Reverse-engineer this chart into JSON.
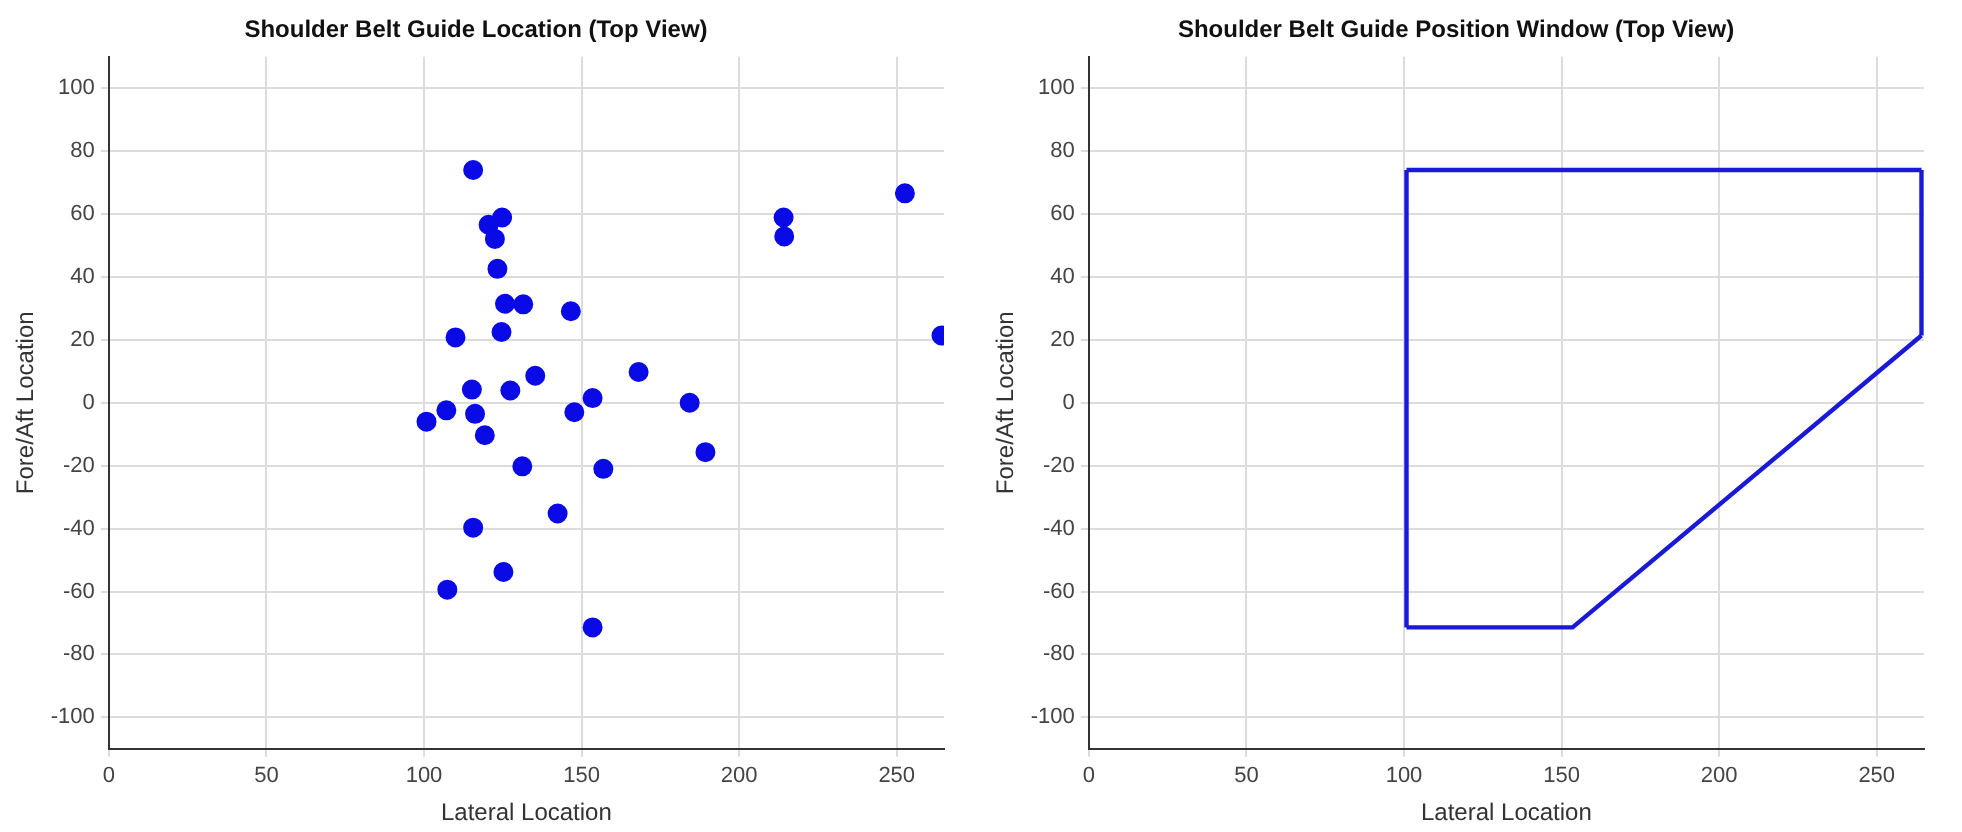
{
  "chart_data": [
    {
      "type": "scatter",
      "title": "Shoulder Belt Guide Location (Top View)",
      "xlabel": "Lateral Location",
      "ylabel": "Fore/Aft Location",
      "x": [
        115.6,
        124.8,
        120.5,
        122.5,
        123.3,
        125.7,
        131.5,
        146.6,
        110.0,
        124.6,
        135.3,
        168.1,
        115.2,
        127.4,
        153.5,
        184.3,
        214.1,
        214.3,
        252.6,
        264.2,
        100.8,
        107.1,
        116.2,
        119.3,
        147.7,
        131.2,
        156.9,
        189.3,
        142.4,
        115.6,
        125.2,
        107.4,
        153.5
      ],
      "values": [
        74,
        58.9,
        56.6,
        52.1,
        42.6,
        31.5,
        31.3,
        29.1,
        20.8,
        22.5,
        8.6,
        9.8,
        4.2,
        3.9,
        1.5,
        0,
        58.9,
        52.9,
        66.6,
        21.4,
        -6,
        -2.4,
        -3.5,
        -10.3,
        -3,
        -20.2,
        -21,
        -15.7,
        -35.2,
        -39.7,
        -53.8,
        -59.4,
        -71.4
      ],
      "color": "#0a0ae6",
      "marker": "circle",
      "xlim": [
        0,
        265
      ],
      "ylim": [
        -110,
        110
      ],
      "xticks": [
        0,
        50,
        100,
        150,
        200,
        250
      ],
      "yticks": [
        -100,
        -80,
        -60,
        -40,
        -20,
        0,
        20,
        40,
        60,
        80,
        100
      ],
      "grid": true
    },
    {
      "type": "line",
      "title": "Shoulder Belt Guide Position Window (Top View)",
      "xlabel": "Lateral Location",
      "ylabel": "Fore/Aft Location",
      "series": [
        {
          "color": "#1a1ad6",
          "x": [
            100.8,
            264.2
          ],
          "values": [
            74,
            74
          ]
        },
        {
          "color": "#1a1ad6",
          "x": [
            100.8,
            153.5,
            264.2
          ],
          "values": [
            -71.4,
            -71.4,
            21.4
          ]
        },
        {
          "color": "#1a1ad6",
          "x": [
            100.8,
            100.8
          ],
          "values": [
            -71.4,
            74
          ]
        },
        {
          "color": "#1a1ad6",
          "x": [
            264.2,
            264.2
          ],
          "values": [
            21.4,
            74
          ]
        }
      ],
      "marker": "none",
      "line_style": "solid",
      "xlim": [
        0,
        265
      ],
      "ylim": [
        -110,
        110
      ],
      "xticks": [
        0,
        50,
        100,
        150,
        200,
        250
      ],
      "yticks": [
        -100,
        -80,
        -60,
        -40,
        -20,
        0,
        20,
        40,
        60,
        80,
        100
      ],
      "grid": true
    }
  ]
}
